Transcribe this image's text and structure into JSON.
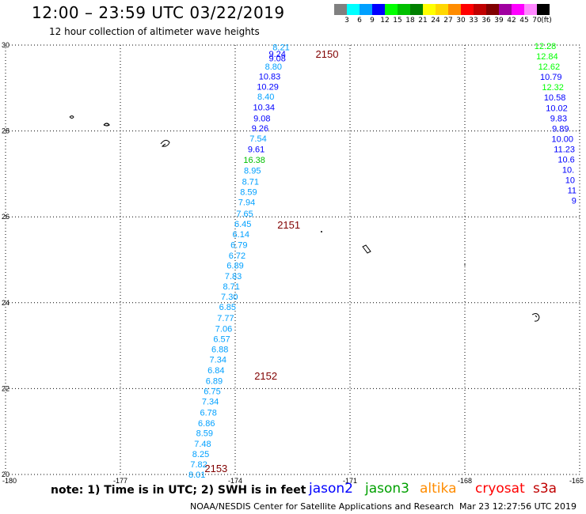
{
  "header": {
    "title": "12:00 – 23:59 UTC 03/22/2019",
    "subtitle": "12 hour collection of altimeter wave heights"
  },
  "legend": {
    "unit": "(ft)",
    "bins": [
      {
        "label": "3",
        "color": "#808080"
      },
      {
        "label": "6",
        "color": "#00ffff"
      },
      {
        "label": "9",
        "color": "#00a0ff"
      },
      {
        "label": "12",
        "color": "#0000ff"
      },
      {
        "label": "15",
        "color": "#00ff00"
      },
      {
        "label": "18",
        "color": "#00c000"
      },
      {
        "label": "21",
        "color": "#008000"
      },
      {
        "label": "24",
        "color": "#ffff00"
      },
      {
        "label": "27",
        "color": "#ffd700"
      },
      {
        "label": "30",
        "color": "#ff8c00"
      },
      {
        "label": "33",
        "color": "#ff0000"
      },
      {
        "label": "36",
        "color": "#c00000"
      },
      {
        "label": "39",
        "color": "#800000"
      },
      {
        "label": "42",
        "color": "#a000a0"
      },
      {
        "label": "45",
        "color": "#ff00ff"
      },
      {
        "label": "70",
        "color": "#ff88ff"
      },
      {
        "label": "",
        "color": "#000000"
      }
    ]
  },
  "axes": {
    "lon_range": [
      -180,
      -165
    ],
    "lat_range": [
      20,
      30
    ],
    "lon_ticks": [
      "-180",
      "-177",
      "-174",
      "-171",
      "-168",
      "-165"
    ],
    "lat_ticks": [
      "30",
      "28",
      "26",
      "24",
      "22",
      "20"
    ]
  },
  "passes": [
    {
      "label": "2150",
      "lon": -171.6,
      "lat": 29.8
    },
    {
      "label": "2151",
      "lon": -172.6,
      "lat": 25.82
    },
    {
      "label": "2152",
      "lon": -173.2,
      "lat": 22.3
    },
    {
      "label": "2153",
      "lon": -174.5,
      "lat": 20.15
    }
  ],
  "observations": [
    {
      "v": "8.21",
      "lon": -172.8,
      "lat": 29.95,
      "c": "#00a0ff"
    },
    {
      "v": "9.24",
      "lon": -172.9,
      "lat": 29.8,
      "c": "#0000ff"
    },
    {
      "v": "9.08",
      "lon": -172.9,
      "lat": 29.7,
      "c": "#0000ff"
    },
    {
      "v": "8.80",
      "lon": -173.0,
      "lat": 29.5,
      "c": "#00a0ff"
    },
    {
      "v": "10.83",
      "lon": -173.1,
      "lat": 29.27,
      "c": "#0000ff"
    },
    {
      "v": "10.29",
      "lon": -173.15,
      "lat": 29.03,
      "c": "#0000ff"
    },
    {
      "v": "8.40",
      "lon": -173.2,
      "lat": 28.8,
      "c": "#00a0ff"
    },
    {
      "v": "10.34",
      "lon": -173.25,
      "lat": 28.55,
      "c": "#0000ff"
    },
    {
      "v": "9.08",
      "lon": -173.3,
      "lat": 28.3,
      "c": "#0000ff"
    },
    {
      "v": "9.26",
      "lon": -173.35,
      "lat": 28.07,
      "c": "#0000ff"
    },
    {
      "v": "7.54",
      "lon": -173.4,
      "lat": 27.83,
      "c": "#00a0ff"
    },
    {
      "v": "9.61",
      "lon": -173.45,
      "lat": 27.58,
      "c": "#0000ff"
    },
    {
      "v": "16.38",
      "lon": -173.5,
      "lat": 27.33,
      "c": "#00c000"
    },
    {
      "v": "8.95",
      "lon": -173.55,
      "lat": 27.08,
      "c": "#00a0ff"
    },
    {
      "v": "8.71",
      "lon": -173.6,
      "lat": 26.82,
      "c": "#00a0ff"
    },
    {
      "v": "8.59",
      "lon": -173.65,
      "lat": 26.58,
      "c": "#00a0ff"
    },
    {
      "v": "7.94",
      "lon": -173.7,
      "lat": 26.34,
      "c": "#00a0ff"
    },
    {
      "v": "7.65",
      "lon": -173.75,
      "lat": 26.08,
      "c": "#00a0ff"
    },
    {
      "v": "6.45",
      "lon": -173.8,
      "lat": 25.84,
      "c": "#00a0ff"
    },
    {
      "v": "6.14",
      "lon": -173.85,
      "lat": 25.6,
      "c": "#00a0ff"
    },
    {
      "v": "6.79",
      "lon": -173.9,
      "lat": 25.35,
      "c": "#00a0ff"
    },
    {
      "v": "6.72",
      "lon": -173.95,
      "lat": 25.1,
      "c": "#00a0ff"
    },
    {
      "v": "6.89",
      "lon": -174.0,
      "lat": 24.87,
      "c": "#00a0ff"
    },
    {
      "v": "7.83",
      "lon": -174.05,
      "lat": 24.62,
      "c": "#00a0ff"
    },
    {
      "v": "8.71",
      "lon": -174.1,
      "lat": 24.38,
      "c": "#00a0ff"
    },
    {
      "v": "7.30",
      "lon": -174.15,
      "lat": 24.14,
      "c": "#00a0ff"
    },
    {
      "v": "6.85",
      "lon": -174.2,
      "lat": 23.9,
      "c": "#00a0ff"
    },
    {
      "v": "7.77",
      "lon": -174.25,
      "lat": 23.65,
      "c": "#00a0ff"
    },
    {
      "v": "7.06",
      "lon": -174.3,
      "lat": 23.4,
      "c": "#00a0ff"
    },
    {
      "v": "6.57",
      "lon": -174.35,
      "lat": 23.16,
      "c": "#00a0ff"
    },
    {
      "v": "6.88",
      "lon": -174.4,
      "lat": 22.92,
      "c": "#00a0ff"
    },
    {
      "v": "7.34",
      "lon": -174.45,
      "lat": 22.68,
      "c": "#00a0ff"
    },
    {
      "v": "6.84",
      "lon": -174.5,
      "lat": 22.43,
      "c": "#00a0ff"
    },
    {
      "v": "6.89",
      "lon": -174.55,
      "lat": 22.18,
      "c": "#00a0ff"
    },
    {
      "v": "6.75",
      "lon": -174.6,
      "lat": 21.94,
      "c": "#00a0ff"
    },
    {
      "v": "7.34",
      "lon": -174.65,
      "lat": 21.7,
      "c": "#00a0ff"
    },
    {
      "v": "6.78",
      "lon": -174.7,
      "lat": 21.45,
      "c": "#00a0ff"
    },
    {
      "v": "6.86",
      "lon": -174.75,
      "lat": 21.2,
      "c": "#00a0ff"
    },
    {
      "v": "8.59",
      "lon": -174.8,
      "lat": 20.97,
      "c": "#00a0ff"
    },
    {
      "v": "7.48",
      "lon": -174.85,
      "lat": 20.72,
      "c": "#00a0ff"
    },
    {
      "v": "8.25",
      "lon": -174.9,
      "lat": 20.48,
      "c": "#00a0ff"
    },
    {
      "v": "7.82",
      "lon": -174.95,
      "lat": 20.24,
      "c": "#00a0ff"
    },
    {
      "v": "8.01",
      "lon": -175.0,
      "lat": 20.0,
      "c": "#00a0ff"
    },
    {
      "v": "12.28",
      "lon": -165.9,
      "lat": 29.98,
      "c": "#00ff00"
    },
    {
      "v": "12.84",
      "lon": -165.85,
      "lat": 29.74,
      "c": "#00ff00"
    },
    {
      "v": "12.62",
      "lon": -165.8,
      "lat": 29.5,
      "c": "#00ff00"
    },
    {
      "v": "10.79",
      "lon": -165.75,
      "lat": 29.26,
      "c": "#0000ff"
    },
    {
      "v": "12.32",
      "lon": -165.7,
      "lat": 29.02,
      "c": "#00ff00"
    },
    {
      "v": "10.58",
      "lon": -165.65,
      "lat": 28.78,
      "c": "#0000ff"
    },
    {
      "v": "10.02",
      "lon": -165.6,
      "lat": 28.54,
      "c": "#0000ff"
    },
    {
      "v": "9.83",
      "lon": -165.55,
      "lat": 28.3,
      "c": "#0000ff"
    },
    {
      "v": "9.89",
      "lon": -165.5,
      "lat": 28.06,
      "c": "#0000ff"
    },
    {
      "v": "10.00",
      "lon": -165.45,
      "lat": 27.82,
      "c": "#0000ff"
    },
    {
      "v": "11.23",
      "lon": -165.4,
      "lat": 27.58,
      "c": "#0000ff"
    },
    {
      "v": "10.6",
      "lon": -165.35,
      "lat": 27.34,
      "c": "#0000ff"
    },
    {
      "v": "10.",
      "lon": -165.3,
      "lat": 27.1,
      "c": "#0000ff"
    },
    {
      "v": "10",
      "lon": -165.25,
      "lat": 26.86,
      "c": "#0000ff"
    },
    {
      "v": "11",
      "lon": -165.2,
      "lat": 26.62,
      "c": "#0000ff"
    },
    {
      "v": "9",
      "lon": -165.15,
      "lat": 26.38,
      "c": "#0000ff"
    }
  ],
  "footer": {
    "note": "note:  1) Time is in UTC;  2) SWH is in feet",
    "satellites": [
      {
        "name": "jason2",
        "color": "#0000ff"
      },
      {
        "name": "jason3",
        "color": "#00a000"
      },
      {
        "name": "altika",
        "color": "#ff8c00"
      },
      {
        "name": "cryosat",
        "color": "#ff0000"
      },
      {
        "name": "s3a",
        "color": "#c00000"
      }
    ],
    "credit": "NOAA/NESDIS Center for Satellite Applications and Research",
    "timestamp": "Mar 23 12:27:56 UTC 2019"
  }
}
